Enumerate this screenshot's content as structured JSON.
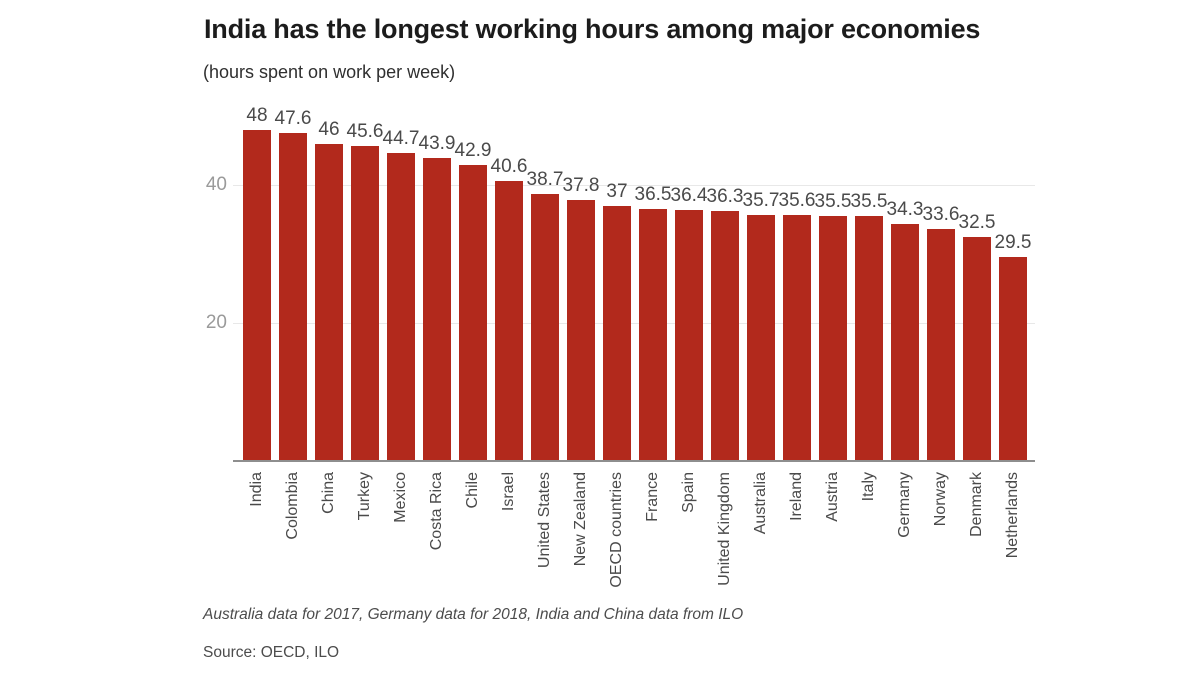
{
  "chart_data": {
    "type": "bar",
    "title": "India has the longest working hours among major economies",
    "subtitle": "(hours spent on work per week)",
    "categories": [
      "India",
      "Colombia",
      "China",
      "Turkey",
      "Mexico",
      "Costa Rica",
      "Chile",
      "Israel",
      "United States",
      "New Zealand",
      "OECD countries",
      "France",
      "Spain",
      "United Kingdom",
      "Australia",
      "Ireland",
      "Austria",
      "Italy",
      "Germany",
      "Norway",
      "Denmark",
      "Netherlands"
    ],
    "values": [
      48,
      47.6,
      46,
      45.6,
      44.7,
      43.9,
      42.9,
      40.6,
      38.7,
      37.8,
      37,
      36.5,
      36.4,
      36.3,
      35.7,
      35.6,
      35.5,
      35.5,
      34.3,
      33.6,
      32.5,
      29.5
    ],
    "value_labels_shown": true,
    "xlabel": "",
    "ylabel": "",
    "y_ticks": [
      20,
      40
    ],
    "ylim": [
      0,
      50
    ],
    "grid": "horizontal",
    "legend": "none",
    "footnote": "Australia data for 2017, Germany data for 2018, India and China data from ILO",
    "source": "Source: OECD, ILO"
  },
  "colors": {
    "bar": "#b2291c",
    "grid": "#e8e8e8",
    "axis_line": "#8e8e8e",
    "tick_label": "#9a9a9a",
    "value_label": "#4a4a4a",
    "category_label": "#4a4a4a",
    "title": "#1c1c1c",
    "subtitle": "#2f2f2f",
    "background": "#ffffff"
  }
}
